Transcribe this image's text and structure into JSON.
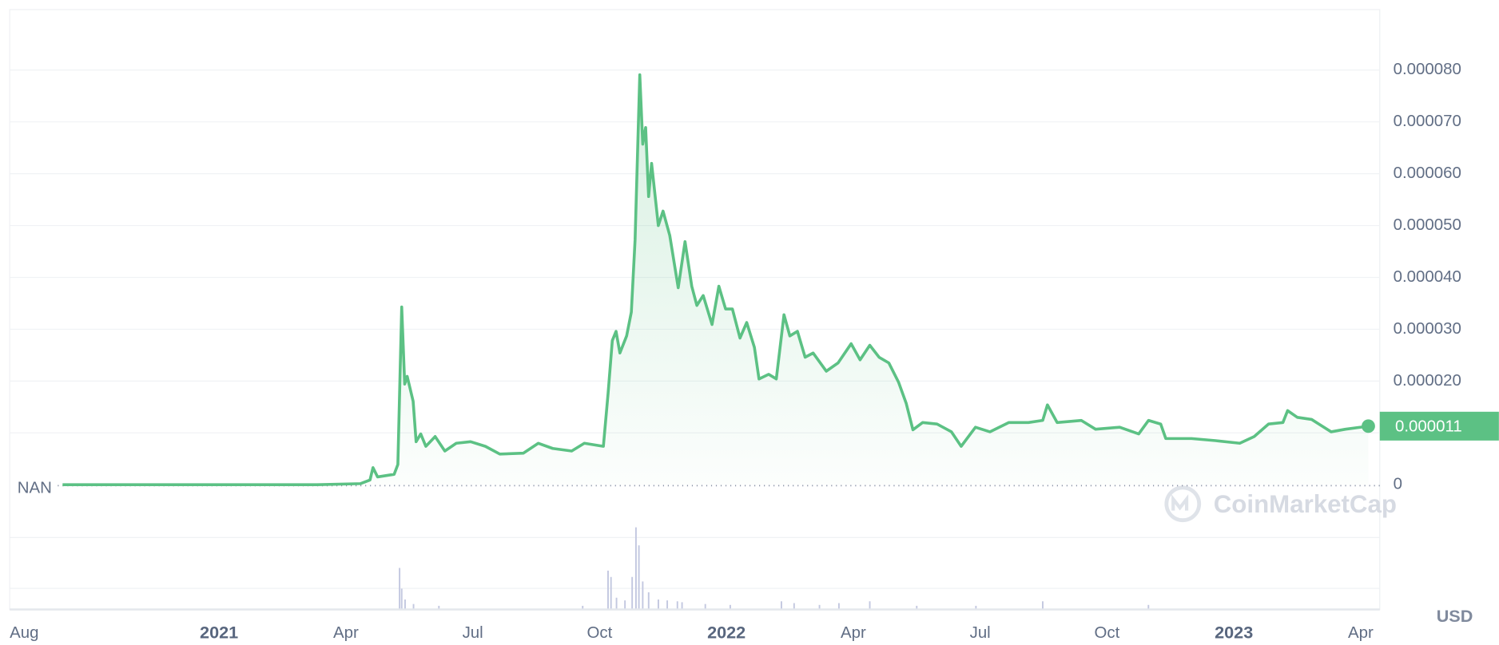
{
  "chart_data": {
    "type": "line",
    "color": "#5cc184",
    "fill": true,
    "grid": true,
    "x": [
      1.3,
      7.32,
      8.34,
      8.57,
      8.64,
      8.75,
      9.14,
      9.23,
      9.32,
      9.39,
      9.45,
      9.59,
      9.66,
      9.77,
      9.89,
      10.11,
      10.34,
      10.61,
      10.95,
      11.3,
      11.64,
      12.2,
      12.55,
      12.89,
      13.34,
      13.64,
      14.09,
      14.2,
      14.3,
      14.39,
      14.48,
      14.64,
      14.75,
      14.84,
      14.95,
      15.02,
      15.09,
      15.16,
      15.23,
      15.39,
      15.5,
      15.66,
      15.86,
      16.02,
      16.18,
      16.3,
      16.45,
      16.66,
      16.82,
      16.98,
      17.14,
      17.32,
      17.48,
      17.66,
      17.77,
      18.0,
      18.18,
      18.36,
      18.5,
      18.68,
      18.86,
      19.05,
      19.36,
      19.64,
      19.95,
      20.16,
      20.39,
      20.61,
      20.84,
      21.07,
      21.25,
      21.41,
      21.64,
      21.98,
      22.32,
      22.55,
      22.89,
      23.23,
      23.68,
      24.14,
      24.48,
      24.59,
      24.82,
      25.39,
      25.73,
      26.3,
      26.75,
      26.98,
      27.27,
      27.39,
      28.0,
      28.57,
      29.14,
      29.48,
      29.82,
      30.16,
      30.27,
      30.5,
      30.84,
      31.3,
      31.64,
      32.18
    ],
    "values": [
      0,
      0,
      2e-07,
      9e-07,
      3.3e-06,
      1.5e-06,
      2e-06,
      3.9e-06,
      3.43e-05,
      1.94e-05,
      2.09e-05,
      1.61e-05,
      8.3e-06,
      9.8e-06,
      7.4e-06,
      9.3e-06,
      6.5e-06,
      8e-06,
      8.3e-06,
      7.4e-06,
      5.9e-06,
      6.1e-06,
      8e-06,
      7e-06,
      6.5e-06,
      8e-06,
      7.4e-06,
      1.76e-05,
      2.78e-05,
      2.96e-05,
      2.54e-05,
      2.87e-05,
      3.33e-05,
      4.72e-05,
      7.91e-05,
      6.57e-05,
      6.89e-05,
      5.56e-05,
      6.2e-05,
      5e-05,
      5.28e-05,
      4.81e-05,
      3.8e-05,
      4.69e-05,
      3.83e-05,
      3.46e-05,
      3.65e-05,
      3.09e-05,
      3.83e-05,
      3.39e-05,
      3.39e-05,
      2.83e-05,
      3.13e-05,
      2.65e-05,
      2.04e-05,
      2.13e-05,
      2.04e-05,
      3.28e-05,
      2.87e-05,
      2.96e-05,
      2.46e-05,
      2.54e-05,
      2.19e-05,
      2.35e-05,
      2.72e-05,
      2.41e-05,
      2.69e-05,
      2.46e-05,
      2.35e-05,
      1.98e-05,
      1.57e-05,
      1.06e-05,
      1.2e-05,
      1.17e-05,
      1.02e-05,
      7.4e-06,
      1.11e-05,
      1.02e-05,
      1.2e-05,
      1.2e-05,
      1.24e-05,
      1.54e-05,
      1.2e-05,
      1.24e-05,
      1.07e-05,
      1.11e-05,
      9.8e-06,
      1.24e-05,
      1.17e-05,
      8.9e-06,
      8.9e-06,
      8.5e-06,
      8e-06,
      9.3e-06,
      1.17e-05,
      1.2e-05,
      1.43e-05,
      1.3e-05,
      1.26e-05,
      1.02e-05,
      1.07e-05,
      1.13e-05
    ],
    "xlim": [
      0.05,
      32.45
    ],
    "ylim": [
      0,
      9e-05
    ],
    "xticks": [
      {
        "value": 0,
        "label": "Aug"
      },
      {
        "value": 5,
        "label": "2021",
        "bold": true
      },
      {
        "value": 8,
        "label": "Apr"
      },
      {
        "value": 11,
        "label": "Jul"
      },
      {
        "value": 14,
        "label": "Oct"
      },
      {
        "value": 17,
        "label": "2022",
        "bold": true
      },
      {
        "value": 20,
        "label": "Apr"
      },
      {
        "value": 23,
        "label": "Jul"
      },
      {
        "value": 26,
        "label": "Oct"
      },
      {
        "value": 29,
        "label": "2023",
        "bold": true
      },
      {
        "value": 32,
        "label": "Apr"
      }
    ],
    "yticks": [
      0,
      {
        "value": 1e-05,
        "label": "0.000010"
      },
      {
        "value": 2e-05,
        "label": "0.000020"
      },
      {
        "value": 3e-05,
        "label": "0.000030"
      },
      {
        "value": 4e-05,
        "label": "0.000040"
      },
      {
        "value": 5e-05,
        "label": "0.000050"
      },
      {
        "value": 6e-05,
        "label": "0.000060"
      },
      {
        "value": 7e-05,
        "label": "0.000070"
      },
      {
        "value": 8e-05,
        "label": "0.000080"
      }
    ],
    "current_price": {
      "value": 1.13e-05,
      "label": "0.000011"
    },
    "baseline_label": "NAN",
    "currency": "USD",
    "watermark": "CoinMarketCap",
    "volume": {
      "color": "#c3c8e0",
      "ylim": [
        0,
        100
      ],
      "x": [
        9.27,
        9.32,
        9.4,
        9.6,
        10.2,
        13.6,
        14.2,
        14.27,
        14.4,
        14.6,
        14.77,
        14.86,
        14.93,
        15.02,
        15.16,
        15.39,
        15.6,
        15.84,
        15.95,
        16.5,
        17.09,
        18.3,
        18.6,
        19.2,
        19.66,
        20.39,
        21.5,
        22.9,
        24.48,
        26.98
      ],
      "values": [
        45,
        22,
        10,
        5,
        3,
        3,
        42,
        35,
        12,
        9,
        35,
        90,
        70,
        30,
        18,
        10,
        9,
        8,
        7,
        5,
        4,
        8,
        6,
        4,
        6,
        8,
        3,
        3,
        8,
        4
      ]
    }
  }
}
